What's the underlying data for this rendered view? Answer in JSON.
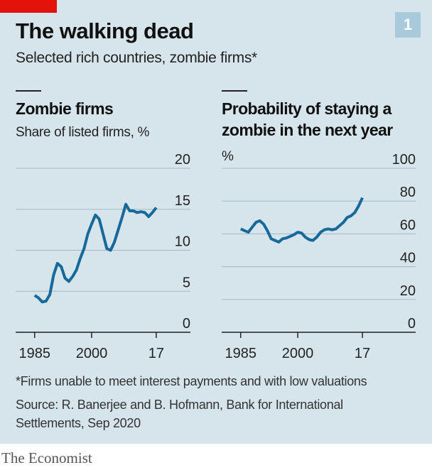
{
  "title": "The walking dead",
  "subtitle": "Selected rich countries, zombie firms*",
  "badge": "1",
  "chart_data": [
    {
      "type": "line",
      "title": "Zombie firms",
      "subtitle": "Share of listed firms, %",
      "x": [
        1985,
        1986,
        1987,
        1988,
        1989,
        1990,
        1991,
        1992,
        1993,
        1994,
        1995,
        1996,
        1997,
        1998,
        1999,
        2000,
        2001,
        2002,
        2003,
        2004,
        2005,
        2006,
        2007,
        2008,
        2009,
        2010,
        2011,
        2012,
        2013,
        2014,
        2015,
        2016,
        2017
      ],
      "series": [
        {
          "color": "#17699a",
          "values": [
            4.5,
            4.2,
            3.7,
            3.8,
            4.6,
            7.0,
            8.4,
            8.0,
            6.6,
            6.2,
            6.8,
            7.6,
            9.0,
            10.2,
            12.0,
            13.2,
            14.3,
            13.8,
            12.0,
            10.2,
            10.0,
            11.0,
            12.5,
            14.0,
            15.6,
            14.8,
            14.8,
            14.6,
            14.7,
            14.6,
            14.1,
            14.6,
            15.2
          ]
        }
      ],
      "xlim": [
        1980,
        2026
      ],
      "xticks": [
        1985,
        2000,
        {
          "value": 2017,
          "label": "17"
        }
      ],
      "ylim": [
        0,
        20
      ],
      "yticks": [
        0,
        5,
        10,
        15,
        20
      ],
      "grid": true
    },
    {
      "type": "line",
      "title": "Probability of staying a zombie in the next year",
      "subtitle": "%",
      "x": [
        1985,
        1986,
        1987,
        1988,
        1989,
        1990,
        1991,
        1992,
        1993,
        1994,
        1995,
        1996,
        1997,
        1998,
        1999,
        2000,
        2001,
        2002,
        2003,
        2004,
        2005,
        2006,
        2007,
        2008,
        2009,
        2010,
        2011,
        2012,
        2013,
        2014,
        2015,
        2016,
        2017
      ],
      "series": [
        {
          "color": "#17699a",
          "values": [
            63,
            62,
            61,
            64,
            67,
            68,
            66,
            62,
            57,
            56,
            55,
            57,
            57.5,
            58.5,
            59.5,
            61,
            60.5,
            58,
            56.5,
            56,
            58,
            61,
            62.5,
            63,
            62.5,
            63,
            65,
            67,
            70,
            71,
            73,
            77,
            82
          ]
        }
      ],
      "xlim": [
        1980,
        2031
      ],
      "xticks": [
        1985,
        2000,
        {
          "value": 2017,
          "label": "17"
        }
      ],
      "ylim": [
        0,
        100
      ],
      "yticks": [
        0,
        20,
        40,
        60,
        80,
        100
      ],
      "grid": true
    }
  ],
  "footnote": "*Firms unable to meet interest payments and with low valuations",
  "source": "Source: R. Banerjee and B. Hofmann, Bank for International Settlements, Sep 2020",
  "brand": "The Economist"
}
